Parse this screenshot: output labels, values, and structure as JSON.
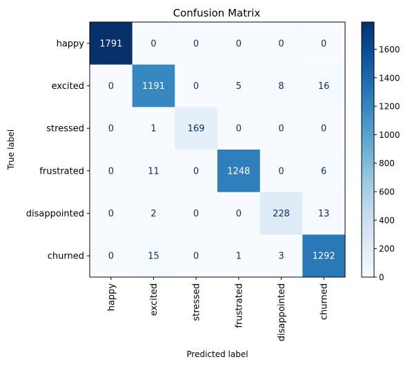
{
  "chart_data": {
    "type": "heatmap",
    "title": "Confusion Matrix",
    "xlabel": "Predicted label",
    "ylabel": "True label",
    "x_categories": [
      "happy",
      "excited",
      "stressed",
      "frustrated",
      "disappointed",
      "churned"
    ],
    "y_categories": [
      "happy",
      "excited",
      "stressed",
      "frustrated",
      "disappointed",
      "churned"
    ],
    "matrix": [
      [
        1791,
        0,
        0,
        0,
        0,
        0
      ],
      [
        0,
        1191,
        0,
        5,
        8,
        16
      ],
      [
        0,
        1,
        169,
        0,
        0,
        0
      ],
      [
        0,
        11,
        0,
        1248,
        0,
        6
      ],
      [
        0,
        2,
        0,
        0,
        228,
        13
      ],
      [
        0,
        15,
        0,
        1,
        3,
        1292
      ]
    ],
    "colormap": "Blues",
    "color_range": [
      0,
      1791
    ],
    "colorbar_ticks": [
      0,
      200,
      400,
      600,
      800,
      1000,
      1200,
      1400,
      1600
    ],
    "grid": false
  }
}
